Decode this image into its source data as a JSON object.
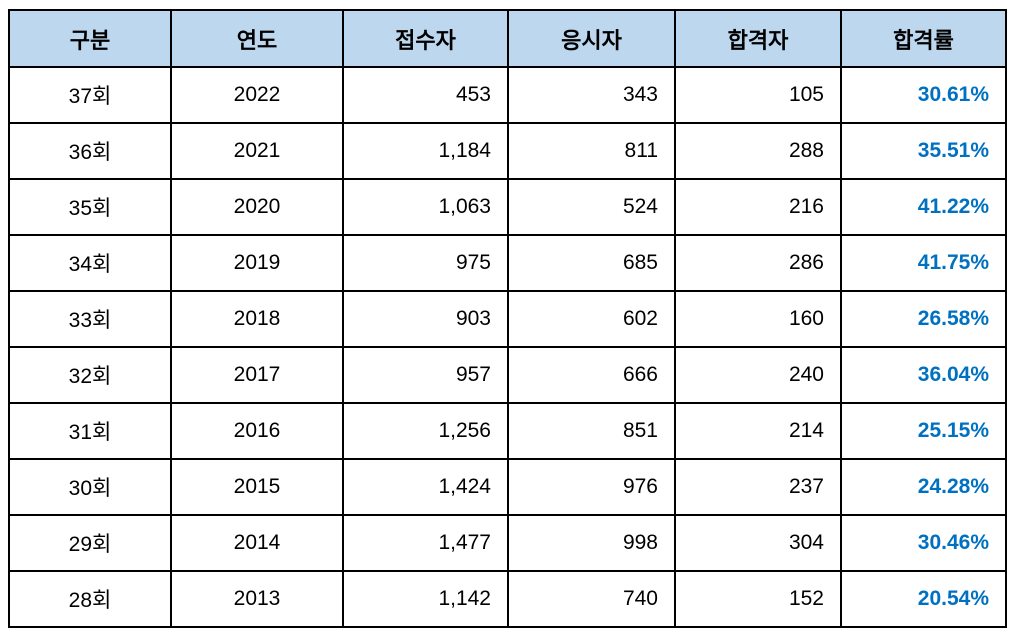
{
  "chart_data": {
    "type": "table",
    "columns": [
      {
        "key": "round",
        "label": "구분",
        "align": "center"
      },
      {
        "key": "year",
        "label": "연도",
        "align": "center"
      },
      {
        "key": "applicants",
        "label": "접수자",
        "align": "right"
      },
      {
        "key": "examinees",
        "label": "응시자",
        "align": "right"
      },
      {
        "key": "passers",
        "label": "합격자",
        "align": "right"
      },
      {
        "key": "pass_rate",
        "label": "합격률",
        "align": "right"
      }
    ],
    "rows": [
      [
        "37회",
        "2022",
        "453",
        "343",
        "105",
        "30.61%"
      ],
      [
        "36회",
        "2021",
        "1,184",
        "811",
        "288",
        "35.51%"
      ],
      [
        "35회",
        "2020",
        "1,063",
        "524",
        "216",
        "41.22%"
      ],
      [
        "34회",
        "2019",
        "975",
        "685",
        "286",
        "41.75%"
      ],
      [
        "33회",
        "2018",
        "903",
        "602",
        "160",
        "26.58%"
      ],
      [
        "32회",
        "2017",
        "957",
        "666",
        "240",
        "36.04%"
      ],
      [
        "31회",
        "2016",
        "1,256",
        "851",
        "214",
        "25.15%"
      ],
      [
        "30회",
        "2015",
        "1,424",
        "976",
        "237",
        "24.28%"
      ],
      [
        "29회",
        "2014",
        "1,477",
        "998",
        "304",
        "30.46%"
      ],
      [
        "28회",
        "2013",
        "1,142",
        "740",
        "152",
        "20.54%"
      ]
    ]
  },
  "colors": {
    "header_bg": "#BDD7EE",
    "border": "#000000",
    "rate_text": "#0070C0",
    "text": "#000000"
  }
}
